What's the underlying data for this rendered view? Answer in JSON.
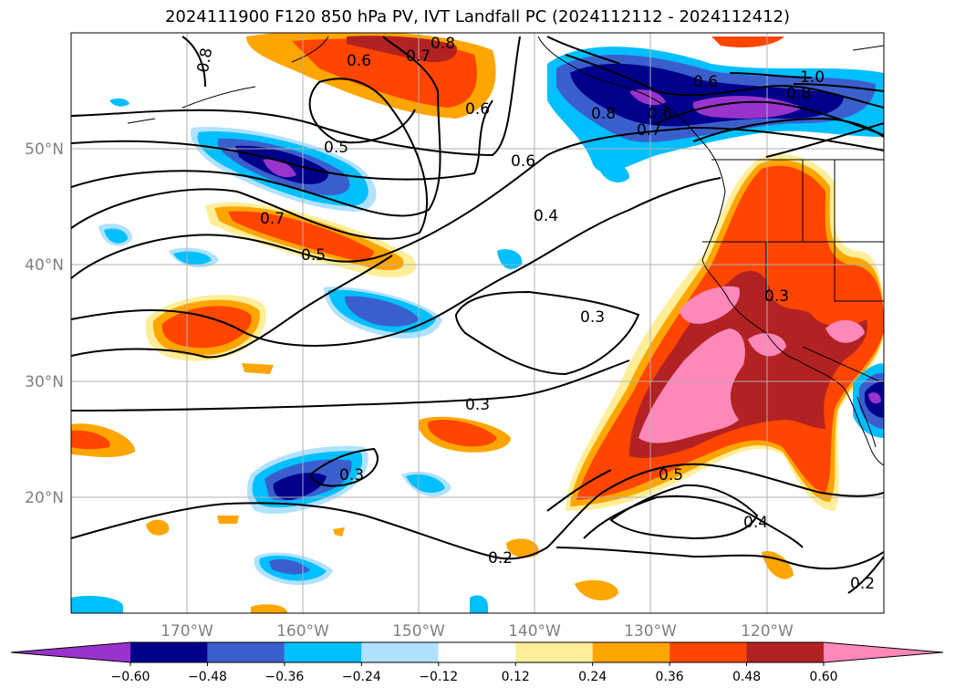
{
  "title": "2024111900 F120 850 hPa PV, IVT Landfall PC (2024112112 - 2024112412)",
  "lon_ticks": [
    "170°W",
    "160°W",
    "150°W",
    "140°W",
    "130°W",
    "120°W"
  ],
  "lat_ticks": [
    "50°N",
    "40°N",
    "30°N",
    "20°N"
  ],
  "colorbar": {
    "labels": [
      "−0.60",
      "−0.48",
      "−0.36",
      "−0.24",
      "−0.12",
      "0.12",
      "0.24",
      "0.36",
      "0.48",
      "0.60"
    ],
    "colors": [
      "#9933cc",
      "#00008b",
      "#3a5fcd",
      "#00bfff",
      "#b0e2ff",
      "#ffffff",
      "#ffee99",
      "#ffa500",
      "#ff4500",
      "#b22222",
      "#ff88bb"
    ]
  },
  "contour_labels": [
    "0.8",
    "0.6",
    "0.7",
    "0.8",
    "0.6",
    "0.5",
    "0.7",
    "0.5",
    "0.6",
    "0.4",
    "0.3",
    "0.3",
    "0.3",
    "0.2",
    "0.5",
    "0.4",
    "0.2",
    "0.6",
    "0.8",
    "1.0",
    "0.8",
    "0.6",
    "0.7",
    "0.3"
  ]
}
